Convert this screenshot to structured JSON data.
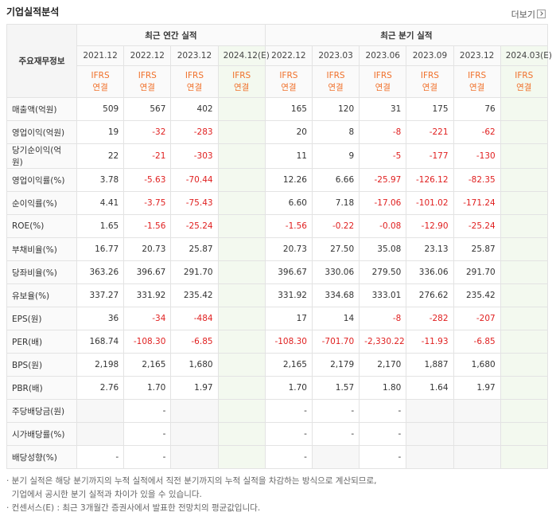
{
  "header": {
    "title": "기업실적분석",
    "more": "더보기"
  },
  "table": {
    "corner": "주요재무정보",
    "groups": [
      {
        "label": "최근 연간 실적",
        "columns": [
          {
            "period": "2021.12",
            "standard": "IFRS",
            "scope": "연결"
          },
          {
            "period": "2022.12",
            "standard": "IFRS",
            "scope": "연결"
          },
          {
            "period": "2023.12",
            "standard": "IFRS",
            "scope": "연결"
          },
          {
            "period": "2024.12(E)",
            "standard": "IFRS",
            "scope": "연결",
            "estimate": true
          }
        ]
      },
      {
        "label": "최근 분기 실적",
        "columns": [
          {
            "period": "2022.12",
            "standard": "IFRS",
            "scope": "연결"
          },
          {
            "period": "2023.03",
            "standard": "IFRS",
            "scope": "연결"
          },
          {
            "period": "2023.06",
            "standard": "IFRS",
            "scope": "연결"
          },
          {
            "period": "2023.09",
            "standard": "IFRS",
            "scope": "연결"
          },
          {
            "period": "2023.12",
            "standard": "IFRS",
            "scope": "연결"
          },
          {
            "period": "2024.03(E)",
            "standard": "IFRS",
            "scope": "연결",
            "estimate": true
          }
        ]
      }
    ],
    "sections": [
      [
        {
          "label": "매출액(억원)",
          "values": [
            "509",
            "567",
            "402",
            null,
            "165",
            "120",
            "31",
            "175",
            "76",
            null
          ]
        },
        {
          "label": "영업이익(억원)",
          "values": [
            "19",
            "-32",
            "-283",
            null,
            "20",
            "8",
            "-8",
            "-221",
            "-62",
            null
          ]
        },
        {
          "label": "당기순이익(억원)",
          "values": [
            "22",
            "-21",
            "-303",
            null,
            "11",
            "9",
            "-5",
            "-177",
            "-130",
            null
          ]
        }
      ],
      [
        {
          "label": "영업이익률(%)",
          "values": [
            "3.78",
            "-5.63",
            "-70.44",
            null,
            "12.26",
            "6.66",
            "-25.97",
            "-126.12",
            "-82.35",
            null
          ]
        },
        {
          "label": "순이익률(%)",
          "values": [
            "4.41",
            "-3.75",
            "-75.43",
            null,
            "6.60",
            "7.18",
            "-17.06",
            "-101.02",
            "-171.24",
            null
          ]
        },
        {
          "label": "ROE(%)",
          "values": [
            "1.65",
            "-1.56",
            "-25.24",
            null,
            "-1.56",
            "-0.22",
            "-0.08",
            "-12.90",
            "-25.24",
            null
          ]
        }
      ],
      [
        {
          "label": "부채비율(%)",
          "values": [
            "16.77",
            "20.73",
            "25.87",
            null,
            "20.73",
            "27.50",
            "35.08",
            "23.13",
            "25.87",
            null
          ]
        },
        {
          "label": "당좌비율(%)",
          "values": [
            "363.26",
            "396.67",
            "291.70",
            null,
            "396.67",
            "330.06",
            "279.50",
            "336.06",
            "291.70",
            null
          ]
        },
        {
          "label": "유보율(%)",
          "values": [
            "337.27",
            "331.92",
            "235.42",
            null,
            "331.92",
            "334.68",
            "333.01",
            "276.62",
            "235.42",
            null
          ]
        }
      ],
      [
        {
          "label": "EPS(원)",
          "values": [
            "36",
            "-34",
            "-484",
            null,
            "17",
            "14",
            "-8",
            "-282",
            "-207",
            null
          ]
        },
        {
          "label": "PER(배)",
          "values": [
            "168.74",
            "-108.30",
            "-6.85",
            null,
            "-108.30",
            "-701.70",
            "-2,330.22",
            "-11.93",
            "-6.85",
            null
          ]
        },
        {
          "label": "BPS(원)",
          "values": [
            "2,198",
            "2,165",
            "1,680",
            null,
            "2,165",
            "2,179",
            "2,170",
            "1,887",
            "1,680",
            null
          ]
        },
        {
          "label": "PBR(배)",
          "values": [
            "2.76",
            "1.70",
            "1.97",
            null,
            "1.70",
            "1.57",
            "1.80",
            "1.64",
            "1.97",
            null
          ]
        }
      ],
      [
        {
          "label": "주당배당금(원)",
          "values": [
            null,
            "-",
            null,
            null,
            "-",
            "-",
            "-",
            null,
            null,
            null
          ]
        },
        {
          "label": "시가배당률(%)",
          "values": [
            null,
            "-",
            null,
            null,
            "-",
            "-",
            "-",
            null,
            null,
            null
          ]
        },
        {
          "label": "배당성향(%)",
          "values": [
            "-",
            "-",
            null,
            null,
            "-",
            null,
            "-",
            null,
            null,
            null
          ]
        }
      ]
    ]
  },
  "notes": [
    "· 분기 실적은 해당 분기까지의 누적 실적에서 직전 분기까지의 누적 실적을 차감하는 방식으로 계산되므로,",
    "  기업에서 공시한 분기 실적과 차이가 있을 수 있습니다.",
    "· 컨센서스(E) : 최근 3개월간 증권사에서 발표한 전망치의 평균값입니다."
  ]
}
